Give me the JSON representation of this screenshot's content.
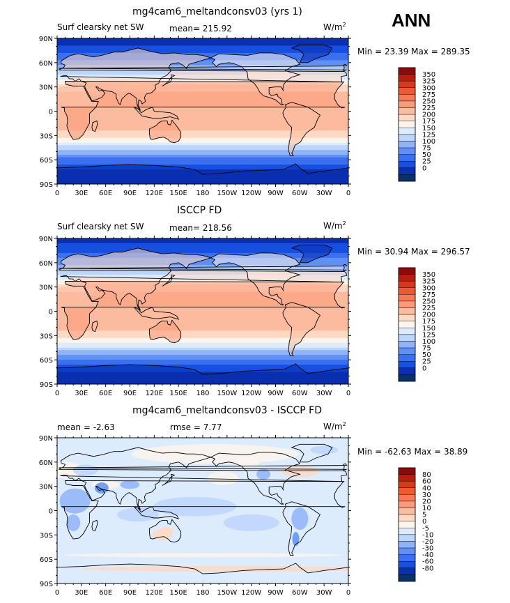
{
  "season": "ANN",
  "units_main": "W/m",
  "units_sup": "2",
  "lat_labels": [
    "90N",
    "60N",
    "30N",
    "0",
    "30S",
    "60S",
    "90S"
  ],
  "lon_labels": [
    "0",
    "30E",
    "60E",
    "90E",
    "120E",
    "150E",
    "180",
    "150W",
    "120W",
    "90W",
    "60W",
    "30W",
    "0"
  ],
  "abs_colors": [
    "#08306b",
    "#0a2fb0",
    "#1750e0",
    "#3a70f0",
    "#6090f5",
    "#90b3f8",
    "#bdd5fb",
    "#ddecfd",
    "#fdf4ec",
    "#fdd9c4",
    "#fcbb9e",
    "#fb9a78",
    "#f67a55",
    "#ec5a35",
    "#d8391b",
    "#b81d10",
    "#8b0a0a"
  ],
  "abs_levels": [
    "0",
    "25",
    "50",
    "75",
    "100",
    "125",
    "150",
    "175",
    "200",
    "225",
    "250",
    "275",
    "300",
    "325",
    "350"
  ],
  "diff_colors": [
    "#08306b",
    "#0a2fb0",
    "#1750e0",
    "#3a70f0",
    "#6090f5",
    "#90b3f8",
    "#bdd5fb",
    "#ddecfd",
    "#fdf4ec",
    "#fdd9c4",
    "#fcbb9e",
    "#fb9a78",
    "#f67a55",
    "#ec5a35",
    "#d8391b",
    "#b81d10",
    "#8b0a0a"
  ],
  "diff_levels": [
    "-80",
    "-60",
    "-40",
    "-30",
    "-20",
    "-10",
    "-5",
    "0",
    "5",
    "10",
    "20",
    "30",
    "40",
    "60",
    "80"
  ],
  "panels": [
    {
      "title": "mg4cam6_meltandconsv03 (yrs 1)",
      "left_label": "Surf clearsky net SW",
      "stat1": "mean= 215.92",
      "stat2": "",
      "minmax": "Min =   23.39  Max =  289.35"
    },
    {
      "title": "ISCCP FD",
      "left_label": "Surf clearsky net SW",
      "stat1": "mean= 218.56",
      "stat2": "",
      "minmax": "Min =   30.94  Max =  296.57"
    },
    {
      "title": "mg4cam6_meltandconsv03 - ISCCP FD",
      "left_label": "mean =    -2.63",
      "stat1": "rmse =    7.77",
      "stat2": "",
      "minmax": "Min = -62.63  Max =   38.89"
    }
  ],
  "chart_data": [
    {
      "type": "heatmap",
      "title": "mg4cam6_meltandconsv03 (yrs 1)",
      "variable": "Surf clearsky net SW",
      "units": "W/m2",
      "mean": 215.92,
      "min": 23.39,
      "max": 289.35,
      "x_range": [
        0,
        360
      ],
      "y_range": [
        -90,
        90
      ],
      "zonal_mean_lat": [
        -90,
        -75,
        -60,
        -45,
        -30,
        -15,
        0,
        15,
        30,
        45,
        60,
        75,
        90
      ],
      "zonal_mean_values": [
        35,
        45,
        90,
        165,
        235,
        265,
        270,
        265,
        235,
        175,
        110,
        60,
        30
      ]
    },
    {
      "type": "heatmap",
      "title": "ISCCP FD",
      "variable": "Surf clearsky net SW",
      "units": "W/m2",
      "mean": 218.56,
      "min": 30.94,
      "max": 296.57,
      "x_range": [
        0,
        360
      ],
      "y_range": [
        -90,
        90
      ],
      "zonal_mean_lat": [
        -90,
        -75,
        -60,
        -45,
        -30,
        -15,
        0,
        15,
        30,
        45,
        60,
        75,
        90
      ],
      "zonal_mean_values": [
        40,
        50,
        95,
        170,
        240,
        270,
        275,
        270,
        240,
        180,
        115,
        65,
        35
      ]
    },
    {
      "type": "heatmap",
      "title": "mg4cam6_meltandconsv03 - ISCCP FD",
      "units": "W/m2",
      "mean": -2.63,
      "rmse": 7.77,
      "min": -62.63,
      "max": 38.89,
      "x_range": [
        0,
        360
      ],
      "y_range": [
        -90,
        90
      ],
      "zonal_mean_lat": [
        -90,
        -75,
        -60,
        -45,
        -30,
        -15,
        0,
        15,
        30,
        45,
        60,
        75,
        90
      ],
      "zonal_mean_values": [
        -2,
        1,
        4,
        -3,
        -4,
        -2,
        -3,
        -4,
        -8,
        -6,
        2,
        3,
        1
      ]
    }
  ]
}
